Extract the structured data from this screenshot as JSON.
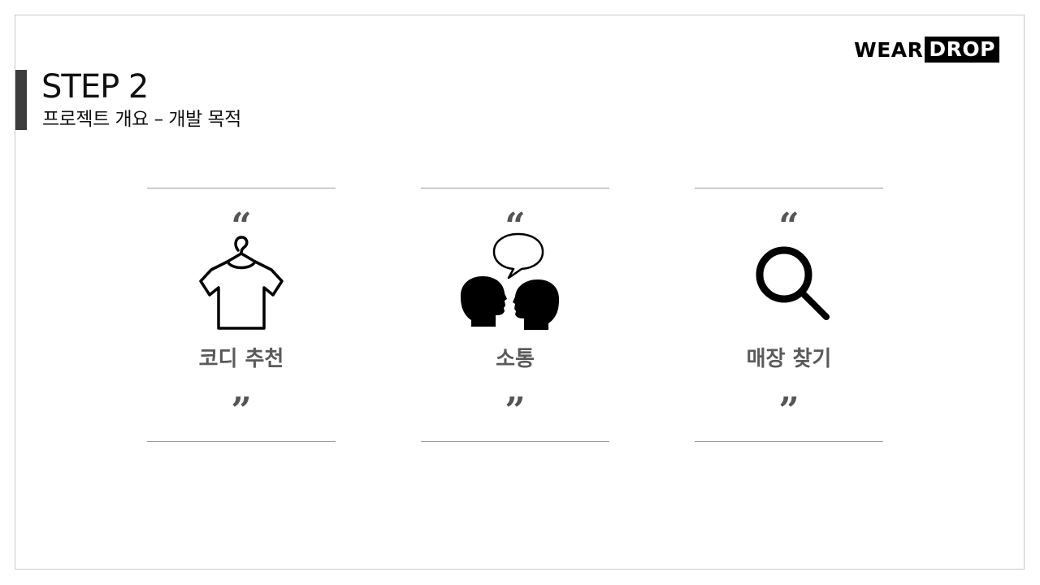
{
  "header": {
    "title": "STEP 2",
    "subtitle": "프로젝트 개요 – 개발 목적"
  },
  "logo": {
    "part_a": "WEAR",
    "part_b": "DROP"
  },
  "quotes": {
    "open": "“",
    "close": "”"
  },
  "cards": [
    {
      "label": "코디 추천",
      "icon": "t-shirt-hanger-icon"
    },
    {
      "label": "소통",
      "icon": "talking-heads-icon"
    },
    {
      "label": "매장 찾기",
      "icon": "magnifier-icon"
    }
  ],
  "colors": {
    "accent": "#3d3d3d",
    "label": "#5a5a5a",
    "divider": "#9a9a9a"
  }
}
